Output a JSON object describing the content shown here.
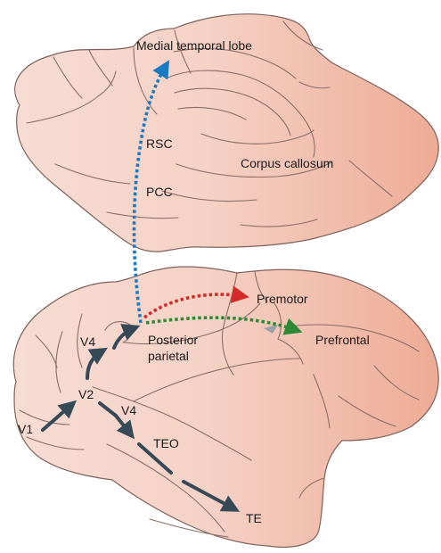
{
  "colors": {
    "brain_light": "#f7dcd3",
    "brain_dark": "#eeab95",
    "outline": "#7d625b",
    "pathway_dark": "#364957",
    "medial_arrow": "#1a7ac2",
    "premotor_arrow": "#d42a2a",
    "prefrontal_arrow": "#2c8a35",
    "grey_marker": "#9aa0a6"
  },
  "medial_view": {
    "labels": {
      "medial_temporal_lobe": "Medial temporal lobe",
      "rsc": "RSC",
      "pcc": "PCC",
      "corpus_callosum": "Corpus callosum"
    }
  },
  "lateral_view": {
    "labels": {
      "v1": "V1",
      "v2": "V2",
      "v4_dorsal": "V4",
      "v4_ventral": "V4",
      "teo": "TEO",
      "te": "TE",
      "posterior_parietal_line1": "Posterior",
      "posterior_parietal_line2": "parietal",
      "premotor": "Premotor",
      "prefrontal": "Prefrontal"
    }
  }
}
